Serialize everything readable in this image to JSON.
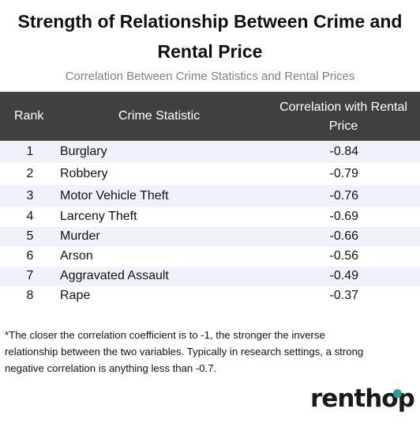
{
  "title": {
    "line1": "Strength of Relationship Between Crime and",
    "line2": "Rental Price"
  },
  "subtitle": "Correlation Between Crime Statistics and Rental Prices",
  "table": {
    "headers": {
      "rank": "Rank",
      "statistic": "Crime Statistic",
      "correlation_line1": "Correlation with Rental",
      "correlation_line2": "Price"
    },
    "rows": [
      {
        "rank": "1",
        "statistic": "Burglary",
        "correlation": "-0.84"
      },
      {
        "rank": "2",
        "statistic": "Robbery",
        "correlation": "-0.79"
      },
      {
        "rank": "3",
        "statistic": "Motor Vehicle Theft",
        "correlation": "-0.76"
      },
      {
        "rank": "4",
        "statistic": "Larceny Theft",
        "correlation": "-0.69"
      },
      {
        "rank": "5",
        "statistic": "Murder",
        "correlation": "-0.66"
      },
      {
        "rank": "6",
        "statistic": "Arson",
        "correlation": "-0.56"
      },
      {
        "rank": "7",
        "statistic": "Aggravated Assault",
        "correlation": "-0.49"
      },
      {
        "rank": "8",
        "statistic": "Rape",
        "correlation": "-0.37"
      }
    ]
  },
  "footnote": {
    "line1": "*The closer the correlation coefficient is to -1, the stronger the inverse",
    "line2": "relationship between the two variables. Typically in research settings, a strong",
    "line3": "negative correlation is anything less than -0.7."
  },
  "logo": {
    "text": "renthop",
    "accent_color": "#2a9d9a"
  },
  "colors": {
    "header_bg": "#404040",
    "row_shade": "#eef3fa"
  }
}
